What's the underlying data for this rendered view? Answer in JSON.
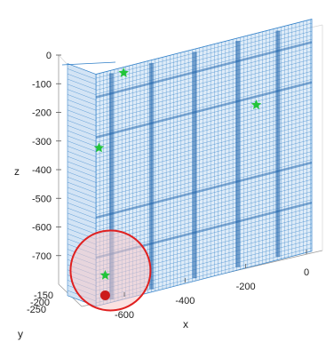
{
  "chart_data": {
    "type": "scatter",
    "projection": "3d",
    "grid": true,
    "legend": "none",
    "axes": {
      "x": {
        "label": "x",
        "ticks": [
          -600,
          -400,
          -200,
          0
        ]
      },
      "y": {
        "label": "y",
        "ticks": [
          -150,
          -200,
          -250
        ]
      },
      "z": {
        "label": "z",
        "ticks": [
          0,
          -100,
          -200,
          -300,
          -400,
          -500,
          -600,
          -700
        ]
      }
    },
    "series": [
      {
        "marker": "point-cloud",
        "color": "#2f7fc8"
      },
      {
        "marker": "star",
        "color": "#22c43a",
        "points": [
          {
            "x": -560,
            "z": 0
          },
          {
            "x": -640,
            "z": -240
          },
          {
            "x": -130,
            "z": -230
          },
          {
            "x": -620,
            "z": -690
          }
        ]
      },
      {
        "marker": "dot",
        "color": "#cc1a1a",
        "points": [
          {
            "x": -620,
            "z": -760
          }
        ]
      }
    ],
    "annotation": {
      "shape": "circle",
      "color": "#e02020"
    }
  }
}
